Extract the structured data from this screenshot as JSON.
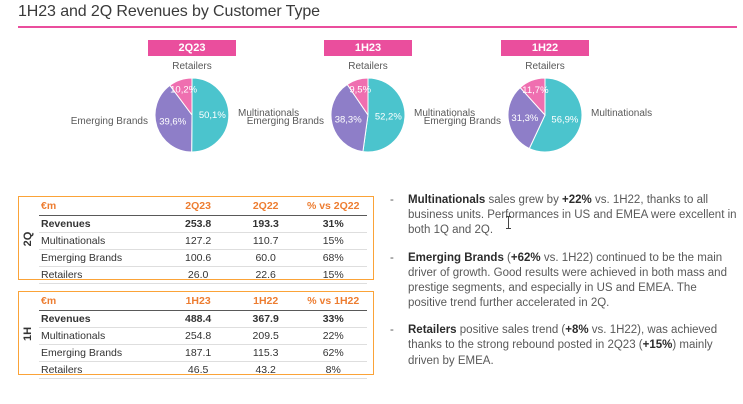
{
  "title": "1H23 and 2Q Revenues by Customer Type",
  "colors": {
    "accent_pink": "#EA4E9D",
    "multinationals": "#4BC4CD",
    "emerging_brands": "#8E7EC8",
    "retailers": "#EF6FB0",
    "table_border": "#FBA338",
    "table_header_text": "#ED7D31"
  },
  "bullet_marker": "-",
  "chart_data": [
    {
      "type": "pie",
      "title": "2Q23",
      "slices": [
        {
          "label": "Multinationals",
          "value": 50.1,
          "display": "50,1%",
          "color_key": "multinationals"
        },
        {
          "label": "Emerging Brands",
          "value": 39.6,
          "display": "39,6%",
          "color_key": "emerging_brands"
        },
        {
          "label": "Retailers",
          "value": 10.2,
          "display": "10,2%",
          "color_key": "retailers"
        }
      ]
    },
    {
      "type": "pie",
      "title": "1H23",
      "slices": [
        {
          "label": "Multinationals",
          "value": 52.2,
          "display": "52,2%",
          "color_key": "multinationals"
        },
        {
          "label": "Emerging Brands",
          "value": 38.3,
          "display": "38,3%",
          "color_key": "emerging_brands"
        },
        {
          "label": "Retailers",
          "value": 9.5,
          "display": "9,5%",
          "color_key": "retailers"
        }
      ]
    },
    {
      "type": "pie",
      "title": "1H22",
      "slices": [
        {
          "label": "Multinationals",
          "value": 56.9,
          "display": "56,9%",
          "color_key": "multinationals"
        },
        {
          "label": "Emerging Brands",
          "value": 31.3,
          "display": "31,3%",
          "color_key": "emerging_brands"
        },
        {
          "label": "Retailers",
          "value": 11.7,
          "display": "11,7%",
          "color_key": "retailers"
        }
      ]
    }
  ],
  "tables": [
    {
      "side_label": "2Q",
      "headers": [
        "€m",
        "2Q23",
        "2Q22",
        "% vs 2Q22"
      ],
      "rows": [
        {
          "cells": [
            "Revenues",
            "253.8",
            "193.3",
            "31%"
          ],
          "bold": true
        },
        {
          "cells": [
            "Multinationals",
            "127.2",
            "110.7",
            "15%"
          ],
          "bold": false
        },
        {
          "cells": [
            "Emerging Brands",
            "100.6",
            "60.0",
            "68%"
          ],
          "bold": false
        },
        {
          "cells": [
            "Retailers",
            "26.0",
            "22.6",
            "15%"
          ],
          "bold": false
        }
      ]
    },
    {
      "side_label": "1H",
      "headers": [
        "€m",
        "1H23",
        "1H22",
        "% vs 1H22"
      ],
      "rows": [
        {
          "cells": [
            "Revenues",
            "488.4",
            "367.9",
            "33%"
          ],
          "bold": true
        },
        {
          "cells": [
            "Multinationals",
            "254.8",
            "209.5",
            "22%"
          ],
          "bold": false
        },
        {
          "cells": [
            "Emerging Brands",
            "187.1",
            "115.3",
            "62%"
          ],
          "bold": false
        },
        {
          "cells": [
            "Retailers",
            "46.5",
            "43.2",
            "8%"
          ],
          "bold": false
        }
      ]
    }
  ],
  "bullets": [
    {
      "segments": [
        {
          "text": "Multinationals",
          "bold": true
        },
        {
          "text": " sales grew by ",
          "bold": false
        },
        {
          "text": "+22%",
          "bold": true
        },
        {
          "text": " vs. 1H22, thanks to all business units. Performances in US and EMEA were excellent in both 1Q and 2Q.",
          "bold": false
        }
      ]
    },
    {
      "segments": [
        {
          "text": "Emerging Brands",
          "bold": true
        },
        {
          "text": " (",
          "bold": false
        },
        {
          "text": "+62%",
          "bold": true
        },
        {
          "text": " vs. 1H22) continued to be the main driver of growth. Good results were achieved in both mass and prestige segments, and especially in US and EMEA. The positive trend further accelerated in 2Q.",
          "bold": false
        }
      ]
    },
    {
      "segments": [
        {
          "text": "Retailers",
          "bold": true
        },
        {
          "text": " positive sales trend (",
          "bold": false
        },
        {
          "text": "+8%",
          "bold": true
        },
        {
          "text": " vs. 1H22), was achieved thanks to the strong rebound posted in 2Q23 (",
          "bold": false
        },
        {
          "text": "+15%",
          "bold": true
        },
        {
          "text": ") mainly driven by EMEA.",
          "bold": false
        }
      ]
    }
  ]
}
